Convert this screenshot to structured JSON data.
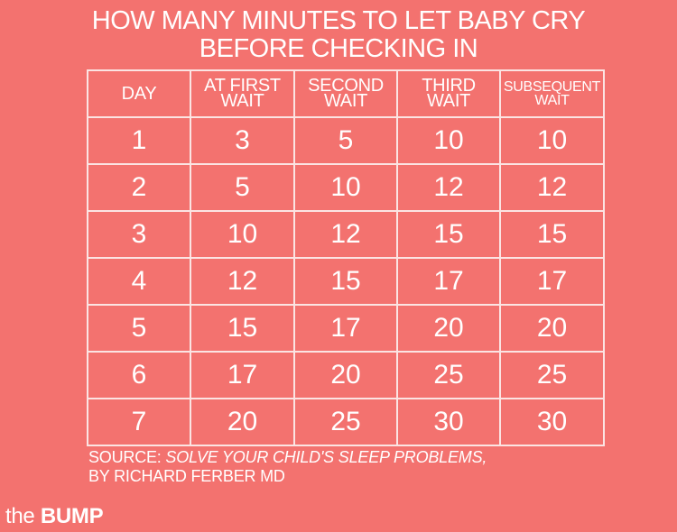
{
  "title": {
    "line1": "HOW MANY MINUTES TO LET BABY CRY",
    "line2": "BEFORE CHECKING IN"
  },
  "table": {
    "headers": [
      {
        "line1": "DAY",
        "line2": ""
      },
      {
        "line1": "AT FIRST",
        "line2": "WAIT"
      },
      {
        "line1": "SECOND",
        "line2": "WAIT"
      },
      {
        "line1": "THIRD",
        "line2": "WAIT"
      },
      {
        "line1": "SUBSEQUENT",
        "line2": "WAIT"
      }
    ],
    "rows": [
      [
        "1",
        "3",
        "5",
        "10",
        "10"
      ],
      [
        "2",
        "5",
        "10",
        "12",
        "12"
      ],
      [
        "3",
        "10",
        "12",
        "15",
        "15"
      ],
      [
        "4",
        "12",
        "15",
        "17",
        "17"
      ],
      [
        "5",
        "15",
        "17",
        "20",
        "20"
      ],
      [
        "6",
        "17",
        "20",
        "25",
        "25"
      ],
      [
        "7",
        "20",
        "25",
        "30",
        "30"
      ]
    ]
  },
  "source": {
    "prefix": "SOURCE: ",
    "book": "SOLVE YOUR CHILD'S SLEEP PROBLEMS,",
    "line2": "BY RICHARD FERBER MD"
  },
  "logo": {
    "the": "the",
    "bump": "BUMP"
  },
  "colors": {
    "background": "#f3726f",
    "text": "#ffffff",
    "grid": "#fbe4e3"
  }
}
